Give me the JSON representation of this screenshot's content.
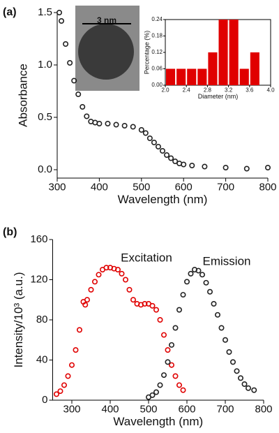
{
  "chart_data": [
    {
      "type": "line",
      "label": "(a)",
      "xlabel": "Wavelength (nm)",
      "ylabel": "Absorbance",
      "annotation": "3 nm",
      "xlim": [
        300,
        800
      ],
      "xticks": [
        300,
        400,
        500,
        600,
        700,
        800
      ],
      "ylim": [
        -0.08,
        1.5
      ],
      "yticks": [
        {
          "value": 0,
          "label": "0.0"
        },
        0.5,
        {
          "value": 1,
          "label": "1.0"
        },
        1.5
      ],
      "series": [
        {
          "color": "#222222",
          "x": [
            305,
            310,
            320,
            330,
            340,
            350,
            360,
            370,
            380,
            390,
            400,
            420,
            440,
            460,
            480,
            500,
            510,
            520,
            530,
            540,
            550,
            560,
            570,
            580,
            590,
            600,
            620,
            650,
            700,
            750,
            800
          ],
          "values": [
            1.5,
            1.42,
            1.2,
            1.02,
            0.85,
            0.72,
            0.6,
            0.51,
            0.46,
            0.45,
            0.44,
            0.44,
            0.43,
            0.42,
            0.41,
            0.38,
            0.35,
            0.3,
            0.26,
            0.22,
            0.18,
            0.14,
            0.11,
            0.08,
            0.06,
            0.05,
            0.04,
            0.03,
            0.02,
            0.01,
            0.02
          ]
        }
      ]
    },
    {
      "type": "histogram",
      "xlabel": "Diameter (nm)",
      "ylabel": "Percentage (%)",
      "color": "#e00000",
      "xlim": [
        2.0,
        4.0
      ],
      "xticks": [
        {
          "value": 2,
          "label": "2.0"
        },
        2.4,
        2.8,
        3.2,
        3.6,
        {
          "value": 4,
          "label": "4.0"
        }
      ],
      "ylim": [
        0,
        0.24
      ],
      "yticks": [
        {
          "value": 0,
          "label": "0.00"
        },
        0.06,
        0.12,
        0.18,
        0.24
      ],
      "bins": [
        2.0,
        2.2,
        2.4,
        2.6,
        2.8,
        3.0,
        3.2,
        3.4,
        3.6,
        3.8
      ],
      "values": [
        0.06,
        0.06,
        0.06,
        0.06,
        0.12,
        0.24,
        0.24,
        0.06,
        0.12
      ]
    },
    {
      "type": "line",
      "label": "(b)",
      "xlabel": "Wavelength (nm)",
      "ylabel": "Intensity/10³ (a.u.)",
      "annotations": [
        "Excitation",
        "Emission"
      ],
      "xlim": [
        250,
        800
      ],
      "xticks": [
        300,
        400,
        500,
        600,
        700,
        800
      ],
      "ylim": [
        0,
        160
      ],
      "yticks": [
        0,
        40,
        80,
        120,
        160
      ],
      "series": [
        {
          "color": "#e00000",
          "x": [
            260,
            270,
            280,
            290,
            300,
            310,
            320,
            330,
            335,
            340,
            350,
            360,
            370,
            380,
            390,
            400,
            410,
            420,
            430,
            440,
            450,
            460,
            470,
            480,
            490,
            500,
            510,
            520,
            530,
            540,
            550,
            560,
            570,
            580,
            590
          ],
          "values": [
            6,
            9,
            15,
            24,
            35,
            50,
            70,
            98,
            95,
            100,
            110,
            118,
            125,
            130,
            132,
            132,
            131,
            130,
            126,
            120,
            110,
            100,
            96,
            95,
            96,
            96,
            94,
            90,
            80,
            65,
            50,
            35,
            24,
            15,
            10
          ]
        },
        {
          "color": "#222222",
          "x": [
            500,
            510,
            520,
            530,
            540,
            550,
            560,
            570,
            580,
            590,
            600,
            610,
            620,
            630,
            640,
            650,
            660,
            670,
            680,
            690,
            700,
            710,
            720,
            730,
            740,
            750,
            760,
            775
          ],
          "values": [
            3,
            5,
            8,
            15,
            25,
            38,
            55,
            72,
            90,
            105,
            118,
            126,
            130,
            129,
            125,
            117,
            108,
            96,
            85,
            72,
            60,
            48,
            38,
            29,
            22,
            16,
            12,
            10
          ]
        }
      ]
    }
  ]
}
